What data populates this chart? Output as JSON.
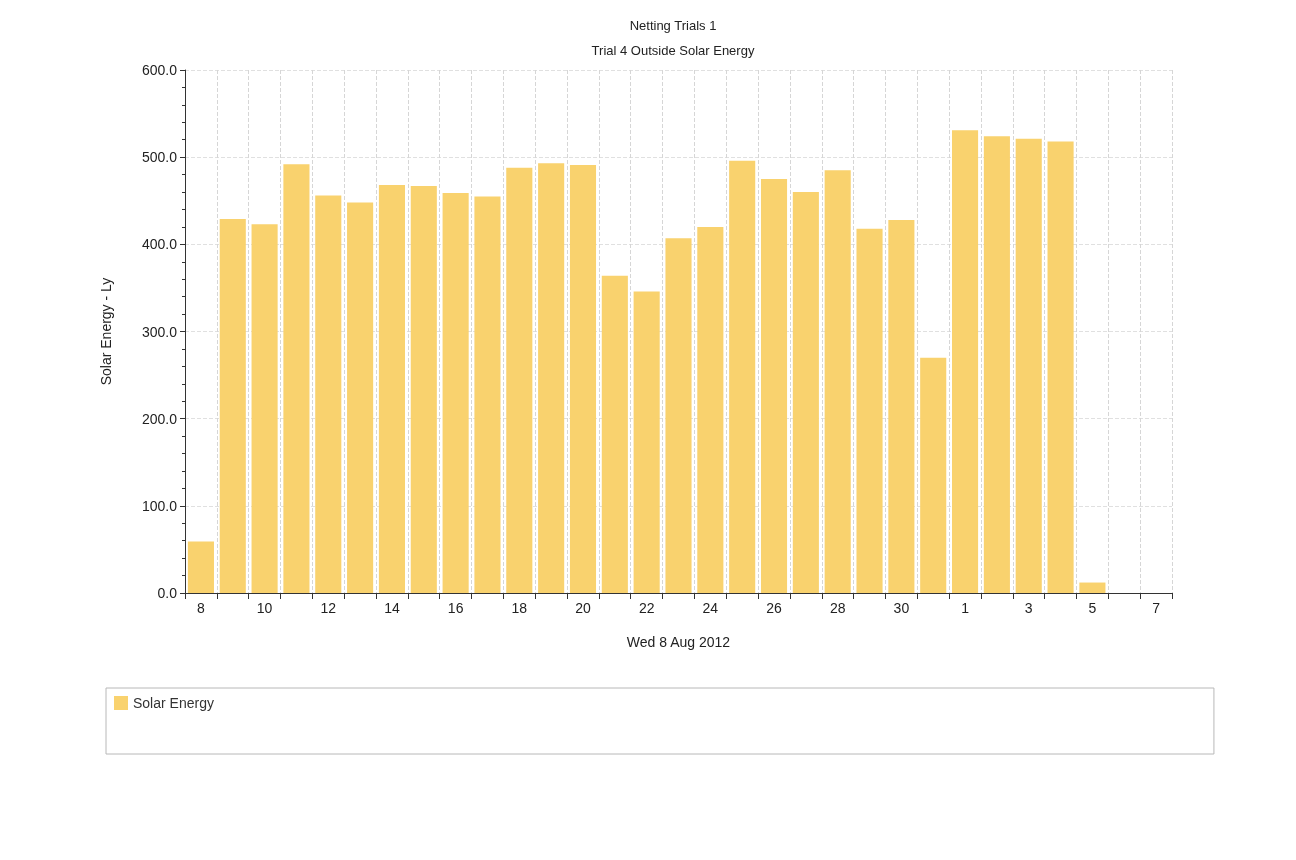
{
  "chart_data": {
    "type": "bar",
    "title": "Netting Trials 1",
    "subtitle": "Trial 4 Outside Solar Energy",
    "xlabel": "Wed 8 Aug 2012",
    "ylabel": "Solar Energy - Ly",
    "categories": [
      "8",
      null,
      "10",
      null,
      "12",
      null,
      "14",
      null,
      "16",
      null,
      "18",
      null,
      "20",
      null,
      "22",
      null,
      "24",
      null,
      "26",
      null,
      "28",
      null,
      "30",
      null,
      "1",
      null,
      "3",
      null,
      "5",
      null,
      "7"
    ],
    "series": [
      {
        "name": "Solar Energy",
        "color": "#f9d26e",
        "values": [
          59,
          429,
          423,
          492,
          456,
          448,
          468,
          467,
          459,
          455,
          488,
          493,
          491,
          364,
          346,
          407,
          420,
          496,
          475,
          460,
          485,
          418,
          428,
          270,
          531,
          524,
          521,
          518,
          12,
          null,
          null
        ]
      }
    ],
    "ylim": [
      0,
      600
    ],
    "yticks": [
      {
        "value": 0,
        "label": "0.0"
      },
      {
        "value": 100,
        "label": "100.0"
      },
      {
        "value": 200,
        "label": "200.0"
      },
      {
        "value": 300,
        "label": "300.0"
      },
      {
        "value": 400,
        "label": "400.0"
      },
      {
        "value": 500,
        "label": "500.0"
      },
      {
        "value": 600,
        "label": "600.0"
      }
    ],
    "grid": true,
    "legend": "bottom"
  }
}
